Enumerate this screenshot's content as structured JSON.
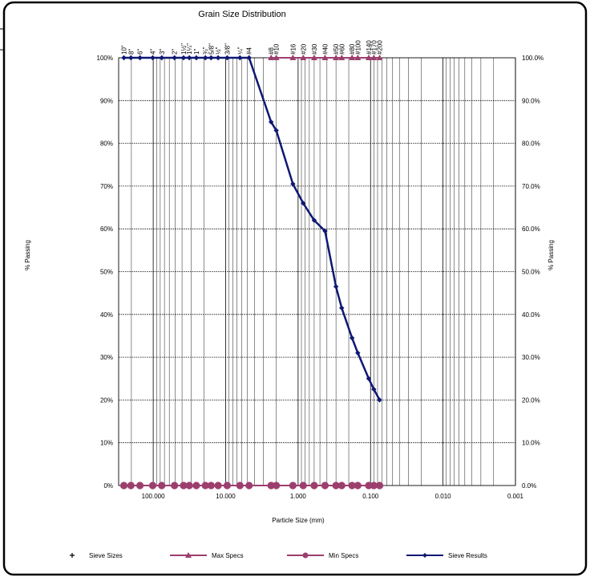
{
  "chart_data": {
    "type": "line",
    "title": "Grain Size Distribution",
    "xlabel": "Particle Size (mm)",
    "ylabel_left": "% Passing",
    "ylabel_right": "% Passing",
    "x_scale": "log",
    "x_reversed": true,
    "xlim": [
      300,
      0.001
    ],
    "ylim": [
      0,
      100
    ],
    "x_tick_labels": [
      "100.000",
      "10.000",
      "1.000",
      "0.100",
      "0.010",
      "0.001"
    ],
    "x_tick_values": [
      100,
      10,
      1,
      0.1,
      0.01,
      0.001
    ],
    "y_ticks_left": [
      "0%",
      "10%",
      "20%",
      "30%",
      "40%",
      "50%",
      "60%",
      "70%",
      "80%",
      "90%",
      "100%"
    ],
    "y_ticks_right": [
      "0.0%",
      "10.0%",
      "20.0%",
      "30.0%",
      "40.0%",
      "50.0%",
      "60.0%",
      "70.0%",
      "80.0%",
      "90.0%",
      "100.0%"
    ],
    "grid": true,
    "sieve_labels": [
      {
        "label": "10\"",
        "size": 254
      },
      {
        "label": "8\"",
        "size": 203.2
      },
      {
        "label": "6\"",
        "size": 152.4
      },
      {
        "label": "4\"",
        "size": 101.6
      },
      {
        "label": "3\"",
        "size": 76.2
      },
      {
        "label": "2\"",
        "size": 50.8
      },
      {
        "label": "1½\"",
        "size": 38.1
      },
      {
        "label": "1¼\"",
        "size": 31.75
      },
      {
        "label": "1\"",
        "size": 25.4
      },
      {
        "label": "¾\"",
        "size": 19.05
      },
      {
        "label": "5/8\"",
        "size": 15.875
      },
      {
        "label": "½\"",
        "size": 12.7
      },
      {
        "label": "3/8\"",
        "size": 9.525
      },
      {
        "label": "¼\"",
        "size": 6.35
      },
      {
        "label": "#4",
        "size": 4.75
      },
      {
        "label": "#8",
        "size": 2.36
      },
      {
        "label": "#10",
        "size": 2.0
      },
      {
        "label": "#16",
        "size": 1.18
      },
      {
        "label": "#20",
        "size": 0.85
      },
      {
        "label": "#30",
        "size": 0.6
      },
      {
        "label": "#40",
        "size": 0.425
      },
      {
        "label": "#50",
        "size": 0.3
      },
      {
        "label": "#60",
        "size": 0.25
      },
      {
        "label": "#80",
        "size": 0.18
      },
      {
        "label": "#100",
        "size": 0.15
      },
      {
        "label": "#140",
        "size": 0.106
      },
      {
        "label": "#170",
        "size": 0.09
      },
      {
        "label": "#200",
        "size": 0.075
      }
    ],
    "series": [
      {
        "name": "Sieve Results",
        "color": "#0f1873",
        "x": [
          254,
          203.2,
          152.4,
          101.6,
          76.2,
          50.8,
          38.1,
          31.75,
          25.4,
          19.05,
          15.875,
          12.7,
          9.525,
          6.35,
          4.75,
          2.36,
          2.0,
          1.18,
          0.85,
          0.6,
          0.425,
          0.3,
          0.25,
          0.18,
          0.15,
          0.106,
          0.09,
          0.075
        ],
        "y": [
          100,
          100,
          100,
          100,
          100,
          100,
          100,
          100,
          100,
          100,
          100,
          100,
          100,
          100,
          100,
          85,
          83,
          70.5,
          66,
          62,
          59.5,
          46.5,
          41.5,
          34.5,
          31,
          25,
          22.5,
          20
        ]
      },
      {
        "name": "Max Specs",
        "color": "#9c3f6e",
        "x": [
          2.36,
          2.0,
          1.18,
          0.85,
          0.6,
          0.425,
          0.3,
          0.25,
          0.18,
          0.15,
          0.106,
          0.09,
          0.075
        ],
        "y": [
          100,
          100,
          100,
          100,
          100,
          100,
          100,
          100,
          100,
          100,
          100,
          100,
          100
        ]
      },
      {
        "name": "Min Specs",
        "color": "#9c3f6e",
        "x": [
          254,
          203.2,
          152.4,
          101.6,
          76.2,
          50.8,
          38.1,
          31.75,
          25.4,
          19.05,
          15.875,
          12.7,
          9.525,
          6.35,
          4.75,
          2.36,
          2.0,
          1.18,
          0.85,
          0.6,
          0.425,
          0.3,
          0.25,
          0.18,
          0.15,
          0.106,
          0.09,
          0.075
        ],
        "y": [
          0,
          0,
          0,
          0,
          0,
          0,
          0,
          0,
          0,
          0,
          0,
          0,
          0,
          0,
          0,
          0,
          0,
          0,
          0,
          0,
          0,
          0,
          0,
          0,
          0,
          0,
          0,
          0
        ]
      }
    ],
    "legend": [
      {
        "name": "Sieve Sizes",
        "marker": "plus"
      },
      {
        "name": "Max Specs",
        "marker": "triangle"
      },
      {
        "name": "Min Specs",
        "marker": "circle"
      },
      {
        "name": "Sieve Results",
        "marker": "diamond"
      }
    ],
    "legend_position": "bottom"
  }
}
